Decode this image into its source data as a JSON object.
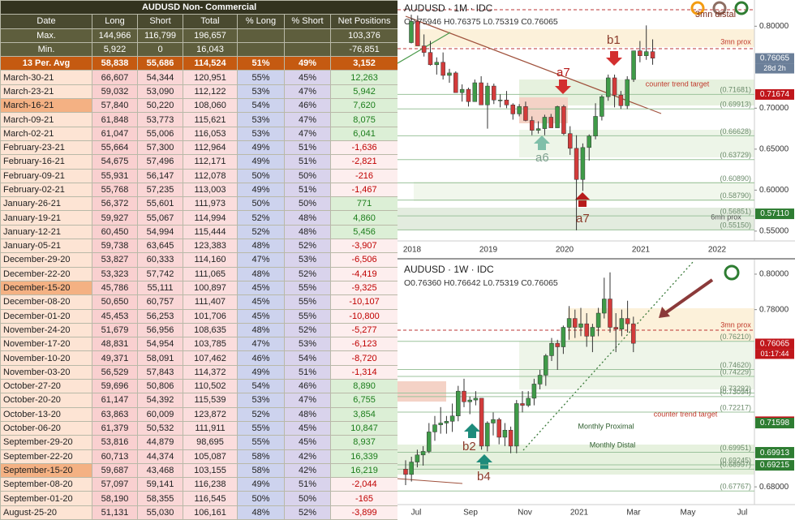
{
  "table": {
    "title": "AUDUSD Non- Commercial",
    "header": [
      "Date",
      "Long",
      "Short",
      "Total",
      "% Long",
      "% Short",
      "Net Positions"
    ],
    "summary": [
      [
        "Max.",
        "144,966",
        "116,799",
        "196,657",
        null,
        null,
        "103,376"
      ],
      [
        "Min.",
        "5,922",
        "0",
        "16,043",
        null,
        null,
        "-76,851"
      ],
      [
        "13 Per. Avg",
        "58,838",
        "55,686",
        "114,524",
        "51%",
        "49%",
        "3,152"
      ]
    ],
    "rows": [
      [
        "March-30-21",
        "66,607",
        "54,344",
        "120,951",
        "55%",
        "45%",
        "12,263"
      ],
      [
        "March-23-21",
        "59,032",
        "53,090",
        "112,122",
        "53%",
        "47%",
        "5,942"
      ],
      [
        "March-16-21",
        "57,840",
        "50,220",
        "108,060",
        "54%",
        "46%",
        "7,620"
      ],
      [
        "March-09-21",
        "61,848",
        "53,773",
        "115,621",
        "53%",
        "47%",
        "8,075"
      ],
      [
        "March-02-21",
        "61,047",
        "55,006",
        "116,053",
        "53%",
        "47%",
        "6,041"
      ],
      [
        "February-23-21",
        "55,664",
        "57,300",
        "112,964",
        "49%",
        "51%",
        "-1,636"
      ],
      [
        "February-16-21",
        "54,675",
        "57,496",
        "112,171",
        "49%",
        "51%",
        "-2,821"
      ],
      [
        "February-09-21",
        "55,931",
        "56,147",
        "112,078",
        "50%",
        "50%",
        "-216"
      ],
      [
        "February-02-21",
        "55,768",
        "57,235",
        "113,003",
        "49%",
        "51%",
        "-1,467"
      ],
      [
        "January-26-21",
        "56,372",
        "55,601",
        "111,973",
        "50%",
        "50%",
        "771"
      ],
      [
        "January-19-21",
        "59,927",
        "55,067",
        "114,994",
        "52%",
        "48%",
        "4,860"
      ],
      [
        "January-12-21",
        "60,450",
        "54,994",
        "115,444",
        "52%",
        "48%",
        "5,456"
      ],
      [
        "January-05-21",
        "59,738",
        "63,645",
        "123,383",
        "48%",
        "52%",
        "-3,907"
      ],
      [
        "December-29-20",
        "53,827",
        "60,333",
        "114,160",
        "47%",
        "53%",
        "-6,506"
      ],
      [
        "December-22-20",
        "53,323",
        "57,742",
        "111,065",
        "48%",
        "52%",
        "-4,419"
      ],
      [
        "December-15-20",
        "45,786",
        "55,111",
        "100,897",
        "45%",
        "55%",
        "-9,325"
      ],
      [
        "December-08-20",
        "50,650",
        "60,757",
        "111,407",
        "45%",
        "55%",
        "-10,107"
      ],
      [
        "December-01-20",
        "45,453",
        "56,253",
        "101,706",
        "45%",
        "55%",
        "-10,800"
      ],
      [
        "November-24-20",
        "51,679",
        "56,956",
        "108,635",
        "48%",
        "52%",
        "-5,277"
      ],
      [
        "November-17-20",
        "48,831",
        "54,954",
        "103,785",
        "47%",
        "53%",
        "-6,123"
      ],
      [
        "November-10-20",
        "49,371",
        "58,091",
        "107,462",
        "46%",
        "54%",
        "-8,720"
      ],
      [
        "November-03-20",
        "56,529",
        "57,843",
        "114,372",
        "49%",
        "51%",
        "-1,314"
      ],
      [
        "October-27-20",
        "59,696",
        "50,806",
        "110,502",
        "54%",
        "46%",
        "8,890"
      ],
      [
        "October-20-20",
        "61,147",
        "54,392",
        "115,539",
        "53%",
        "47%",
        "6,755"
      ],
      [
        "October-13-20",
        "63,863",
        "60,009",
        "123,872",
        "52%",
        "48%",
        "3,854"
      ],
      [
        "October-06-20",
        "61,379",
        "50,532",
        "111,911",
        "55%",
        "45%",
        "10,847"
      ],
      [
        "September-29-20",
        "53,816",
        "44,879",
        "98,695",
        "55%",
        "45%",
        "8,937"
      ],
      [
        "September-22-20",
        "60,713",
        "44,374",
        "105,087",
        "58%",
        "42%",
        "16,339"
      ],
      [
        "September-15-20",
        "59,687",
        "43,468",
        "103,155",
        "58%",
        "42%",
        "16,219"
      ],
      [
        "September-08-20",
        "57,097",
        "59,141",
        "116,238",
        "49%",
        "51%",
        "-2,044"
      ],
      [
        "September-01-20",
        "58,190",
        "58,355",
        "116,545",
        "50%",
        "50%",
        "-165"
      ],
      [
        "August-25-20",
        "51,131",
        "55,030",
        "106,161",
        "48%",
        "52%",
        "-3,899"
      ]
    ]
  },
  "charts": [
    {
      "type": "candlestick",
      "title": "AUDUSD · 1M · IDC",
      "ohlc": "O0.75946 H0.76375 L0.75319 C0.76065",
      "ylim": [
        0.538,
        0.832
      ],
      "yticks": [
        {
          "value": 0.8,
          "label": "0.80000"
        },
        {
          "value": 0.7,
          "label": "0.70000"
        },
        {
          "value": 0.65,
          "label": "0.65000"
        },
        {
          "value": 0.6,
          "label": "0.60000"
        },
        {
          "value": 0.55,
          "label": "0.55000"
        }
      ],
      "xticks": [
        "2018",
        "2019",
        "2020",
        "2021",
        "2022"
      ],
      "up_color": "#3f9b48",
      "down_color": "#d33b3b",
      "candles": [
        [
          0.78,
          0.814,
          0.779,
          0.806
        ],
        [
          0.806,
          0.813,
          0.776,
          0.776
        ],
        [
          0.776,
          0.79,
          0.763,
          0.768
        ],
        [
          0.768,
          0.782,
          0.752,
          0.753
        ],
        [
          0.753,
          0.762,
          0.741,
          0.756
        ],
        [
          0.756,
          0.768,
          0.735,
          0.74
        ],
        [
          0.74,
          0.748,
          0.731,
          0.743
        ],
        [
          0.743,
          0.745,
          0.719,
          0.719
        ],
        [
          0.719,
          0.729,
          0.708,
          0.723
        ],
        [
          0.723,
          0.725,
          0.702,
          0.708
        ],
        [
          0.708,
          0.735,
          0.709,
          0.731
        ],
        [
          0.731,
          0.739,
          0.704,
          0.704
        ],
        [
          0.704,
          0.731,
          0.675,
          0.727
        ],
        [
          0.727,
          0.73,
          0.705,
          0.71
        ],
        [
          0.71,
          0.717,
          0.701,
          0.71
        ],
        [
          0.71,
          0.721,
          0.7,
          0.704
        ],
        [
          0.704,
          0.706,
          0.686,
          0.693
        ],
        [
          0.693,
          0.705,
          0.69,
          0.702
        ],
        [
          0.702,
          0.708,
          0.684,
          0.685
        ],
        [
          0.685,
          0.69,
          0.667,
          0.673
        ],
        [
          0.673,
          0.684,
          0.669,
          0.675
        ],
        [
          0.675,
          0.692,
          0.667,
          0.689
        ],
        [
          0.689,
          0.693,
          0.676,
          0.676
        ],
        [
          0.676,
          0.703,
          0.676,
          0.702
        ],
        [
          0.702,
          0.704,
          0.667,
          0.669
        ],
        [
          0.669,
          0.678,
          0.643,
          0.651
        ],
        [
          0.651,
          0.667,
          0.551,
          0.613
        ],
        [
          0.613,
          0.657,
          0.599,
          0.652
        ],
        [
          0.652,
          0.668,
          0.636,
          0.666
        ],
        [
          0.666,
          0.706,
          0.662,
          0.69
        ],
        [
          0.69,
          0.716,
          0.685,
          0.714
        ],
        [
          0.714,
          0.741,
          0.709,
          0.737
        ],
        [
          0.737,
          0.741,
          0.701,
          0.716
        ],
        [
          0.716,
          0.721,
          0.699,
          0.703
        ],
        [
          0.703,
          0.739,
          0.699,
          0.735
        ],
        [
          0.735,
          0.77,
          0.732,
          0.77
        ],
        [
          0.77,
          0.782,
          0.756,
          0.764
        ],
        [
          0.764,
          0.801,
          0.759,
          0.769
        ],
        [
          0.769,
          0.784,
          0.753,
          0.761
        ]
      ],
      "levels": [
        {
          "value": 0.71681,
          "label": "(0.71681)"
        },
        {
          "value": 0.69913,
          "label": "(0.69913)"
        },
        {
          "value": 0.66628,
          "label": "(0.66628)"
        },
        {
          "value": 0.63729,
          "label": "(0.63729)"
        },
        {
          "value": 0.6089,
          "label": "(0.60890)"
        },
        {
          "value": 0.5879,
          "label": "(0.58790)"
        },
        {
          "value": 0.56851,
          "label": "(0.56851)"
        },
        {
          "value": 0.5515,
          "label": "(0.55150)"
        }
      ],
      "price_boxes": [
        {
          "value": 0.76065,
          "label": "0.76065",
          "sub": "28d 2h",
          "color": "#6b7f99"
        },
        {
          "value": 0.71674,
          "label": "0.71674",
          "color": "#c0161b"
        },
        {
          "value": 0.5711,
          "label": "0.57110",
          "color": "#2e7d32"
        }
      ],
      "annotations": [
        "3mn distal",
        "3mn prox",
        "b1",
        "a7",
        "counter trend target",
        "a6",
        "a7",
        "6mn prox"
      ]
    },
    {
      "type": "candlestick",
      "title": "AUDUSD · 1W · IDC",
      "ohlc": "O0.76360 H0.76642 L0.75319 C0.76065",
      "ylim": [
        0.67,
        0.8073
      ],
      "yticks": [
        {
          "value": 0.8,
          "label": "0.80000"
        },
        {
          "value": 0.78,
          "label": "0.78000"
        },
        {
          "value": 0.68,
          "label": "0.68000"
        }
      ],
      "xticks": [
        "Jul",
        "Sep",
        "Nov",
        "2021",
        "Mar",
        "May",
        "Jul"
      ],
      "up_color": "#3f9b48",
      "down_color": "#d33b3b",
      "candles": [
        [
          0.69,
          0.695,
          0.681,
          0.687
        ],
        [
          0.687,
          0.697,
          0.683,
          0.694
        ],
        [
          0.694,
          0.701,
          0.691,
          0.698
        ],
        [
          0.698,
          0.703,
          0.692,
          0.7
        ],
        [
          0.7,
          0.716,
          0.699,
          0.711
        ],
        [
          0.711,
          0.72,
          0.706,
          0.715
        ],
        [
          0.715,
          0.725,
          0.71,
          0.716
        ],
        [
          0.716,
          0.72,
          0.71,
          0.717
        ],
        [
          0.717,
          0.727,
          0.711,
          0.72
        ],
        [
          0.72,
          0.737,
          0.717,
          0.734
        ],
        [
          0.734,
          0.741,
          0.725,
          0.728
        ],
        [
          0.728,
          0.731,
          0.721,
          0.729
        ],
        [
          0.729,
          0.734,
          0.726,
          0.73
        ],
        [
          0.73,
          0.73,
          0.701,
          0.703
        ],
        [
          0.703,
          0.717,
          0.7,
          0.716
        ],
        [
          0.716,
          0.722,
          0.709,
          0.718
        ],
        [
          0.718,
          0.719,
          0.704,
          0.708
        ],
        [
          0.708,
          0.716,
          0.703,
          0.712
        ],
        [
          0.712,
          0.714,
          0.699,
          0.703
        ],
        [
          0.703,
          0.729,
          0.699,
          0.727
        ],
        [
          0.727,
          0.734,
          0.722,
          0.726
        ],
        [
          0.726,
          0.734,
          0.725,
          0.73
        ],
        [
          0.73,
          0.741,
          0.726,
          0.738
        ],
        [
          0.738,
          0.746,
          0.735,
          0.743
        ],
        [
          0.743,
          0.755,
          0.737,
          0.754
        ],
        [
          0.754,
          0.764,
          0.751,
          0.761
        ],
        [
          0.761,
          0.763,
          0.746,
          0.759
        ],
        [
          0.759,
          0.771,
          0.755,
          0.77
        ],
        [
          0.77,
          0.782,
          0.763,
          0.775
        ],
        [
          0.775,
          0.78,
          0.764,
          0.77
        ],
        [
          0.77,
          0.781,
          0.765,
          0.772
        ],
        [
          0.772,
          0.778,
          0.759,
          0.765
        ],
        [
          0.765,
          0.772,
          0.756,
          0.77
        ],
        [
          0.77,
          0.781,
          0.765,
          0.778
        ],
        [
          0.778,
          0.798,
          0.775,
          0.786
        ],
        [
          0.786,
          0.801,
          0.767,
          0.77
        ],
        [
          0.77,
          0.778,
          0.756,
          0.769
        ],
        [
          0.769,
          0.78,
          0.765,
          0.775
        ],
        [
          0.775,
          0.785,
          0.767,
          0.772
        ],
        [
          0.772,
          0.776,
          0.756,
          0.761
        ]
      ],
      "levels": [
        {
          "value": 0.7621,
          "label": "(0.76210)"
        },
        {
          "value": 0.7462,
          "label": "(0.74620)"
        },
        {
          "value": 0.74229,
          "label": "(0.74229)"
        },
        {
          "value": 0.73292,
          "label": "(0.73292)"
        },
        {
          "value": 0.73094,
          "label": "(0.73094)"
        },
        {
          "value": 0.72217,
          "label": "(0.72217)"
        },
        {
          "value": 0.69951,
          "label": "(0.69951)"
        },
        {
          "value": 0.69245,
          "label": "(0.69245)"
        },
        {
          "value": 0.68997,
          "label": "(0.68997)"
        },
        {
          "value": 0.67767,
          "label": "(0.67767)"
        }
      ],
      "price_boxes": [
        {
          "value": 0.76065,
          "label": "0.76065",
          "sub": "01:17:44",
          "color": "#c0161b"
        },
        {
          "value": 0.71674,
          "label": "0.71674",
          "color": "#c0161b"
        },
        {
          "value": 0.71598,
          "label": "0.71598",
          "color": "#2e7d32"
        },
        {
          "value": 0.69951,
          "label": "0.69951",
          "color": "#2e7d32"
        },
        {
          "value": 0.69913,
          "label": "0.69913",
          "color": "#2e7d32"
        },
        {
          "value": 0.69215,
          "label": "0.69215",
          "color": "#2e7d32"
        }
      ],
      "annotations": [
        "3mn prox",
        "counter trend target",
        "Monthly Proximal",
        "Monthly Distal",
        "b2",
        "b4"
      ]
    }
  ]
}
